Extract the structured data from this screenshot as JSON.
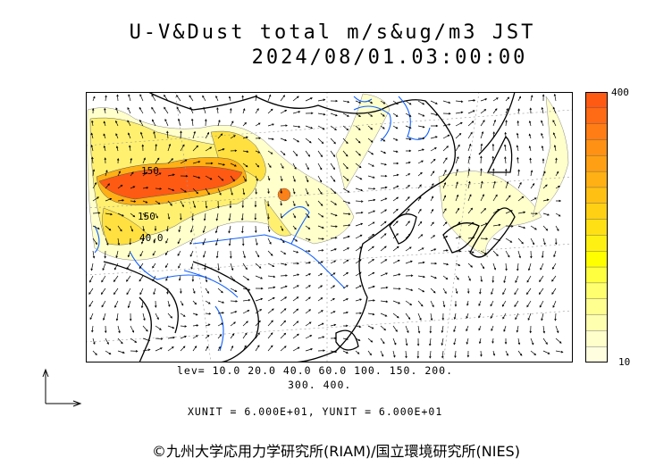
{
  "title": {
    "line1": "U-V&Dust total m/s&ug/m3 JST",
    "line2": "2024/08/01.03:00:00"
  },
  "legend": {
    "max_label": "400",
    "min_label": "10",
    "colors": [
      "#ff5a14",
      "#ff6a14",
      "#ff7d14",
      "#ff9114",
      "#ffa014",
      "#ffb014",
      "#ffc014",
      "#ffd014",
      "#ffe014",
      "#fff014",
      "#ffff00",
      "#ffff40",
      "#ffff70",
      "#ffff90",
      "#ffffb0",
      "#ffffcc",
      "#ffffe0"
    ]
  },
  "contour_levels": {
    "line1": "lev= 10.0 20.0 40.0 60.0 100. 150. 200.",
    "line2": "300. 400."
  },
  "contour_labels": [
    "150",
    "150",
    "40.0"
  ],
  "units": "XUNIT = 6.000E+01, YUNIT = 6.000E+01",
  "copyright": "©九州大学応用力学研究所(RIAM)/国立環境研究所(NIES)"
}
